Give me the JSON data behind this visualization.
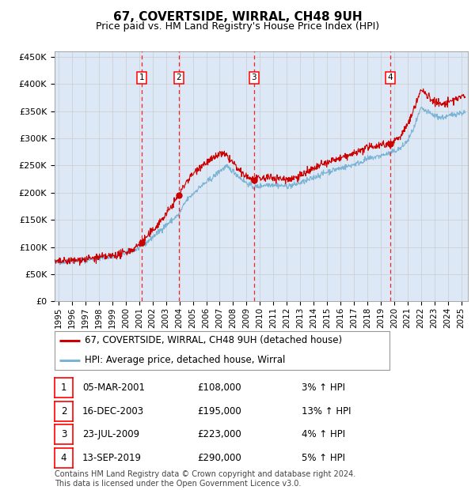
{
  "title": "67, COVERTSIDE, WIRRAL, CH48 9UH",
  "subtitle": "Price paid vs. HM Land Registry's House Price Index (HPI)",
  "ylim": [
    0,
    460000
  ],
  "yticks": [
    0,
    50000,
    100000,
    150000,
    200000,
    250000,
    300000,
    350000,
    400000,
    450000
  ],
  "ytick_labels": [
    "£0",
    "£50K",
    "£100K",
    "£150K",
    "£200K",
    "£250K",
    "£300K",
    "£350K",
    "£400K",
    "£450K"
  ],
  "xlim_start": 1994.7,
  "xlim_end": 2025.5,
  "xtick_years": [
    1995,
    1996,
    1997,
    1998,
    1999,
    2000,
    2001,
    2002,
    2003,
    2004,
    2005,
    2006,
    2007,
    2008,
    2009,
    2010,
    2011,
    2012,
    2013,
    2014,
    2015,
    2016,
    2017,
    2018,
    2019,
    2020,
    2021,
    2022,
    2023,
    2024,
    2025
  ],
  "hpi_color": "#7ab3d4",
  "price_color": "#cc0000",
  "grid_color": "#cccccc",
  "bg_color": "#dce8f5",
  "transactions": [
    {
      "num": 1,
      "date": "05-MAR-2001",
      "year": 2001.17,
      "price": 108000,
      "hpi_pct": "3%"
    },
    {
      "num": 2,
      "date": "16-DEC-2003",
      "year": 2003.96,
      "price": 195000,
      "hpi_pct": "13%"
    },
    {
      "num": 3,
      "date": "23-JUL-2009",
      "year": 2009.55,
      "price": 223000,
      "hpi_pct": "4%"
    },
    {
      "num": 4,
      "date": "13-SEP-2019",
      "year": 2019.71,
      "price": 290000,
      "hpi_pct": "5%"
    }
  ],
  "legend_entries": [
    {
      "label": "67, COVERTSIDE, WIRRAL, CH48 9UH (detached house)",
      "color": "#cc0000"
    },
    {
      "label": "HPI: Average price, detached house, Wirral",
      "color": "#7ab3d4"
    }
  ],
  "footer_text": "Contains HM Land Registry data © Crown copyright and database right 2024.\nThis data is licensed under the Open Government Licence v3.0.",
  "table_rows": [
    [
      "1",
      "05-MAR-2001",
      "£108,000",
      "3% ↑ HPI"
    ],
    [
      "2",
      "16-DEC-2003",
      "£195,000",
      "13% ↑ HPI"
    ],
    [
      "3",
      "23-JUL-2009",
      "£223,000",
      "4% ↑ HPI"
    ],
    [
      "4",
      "13-SEP-2019",
      "£290,000",
      "5% ↑ HPI"
    ]
  ]
}
